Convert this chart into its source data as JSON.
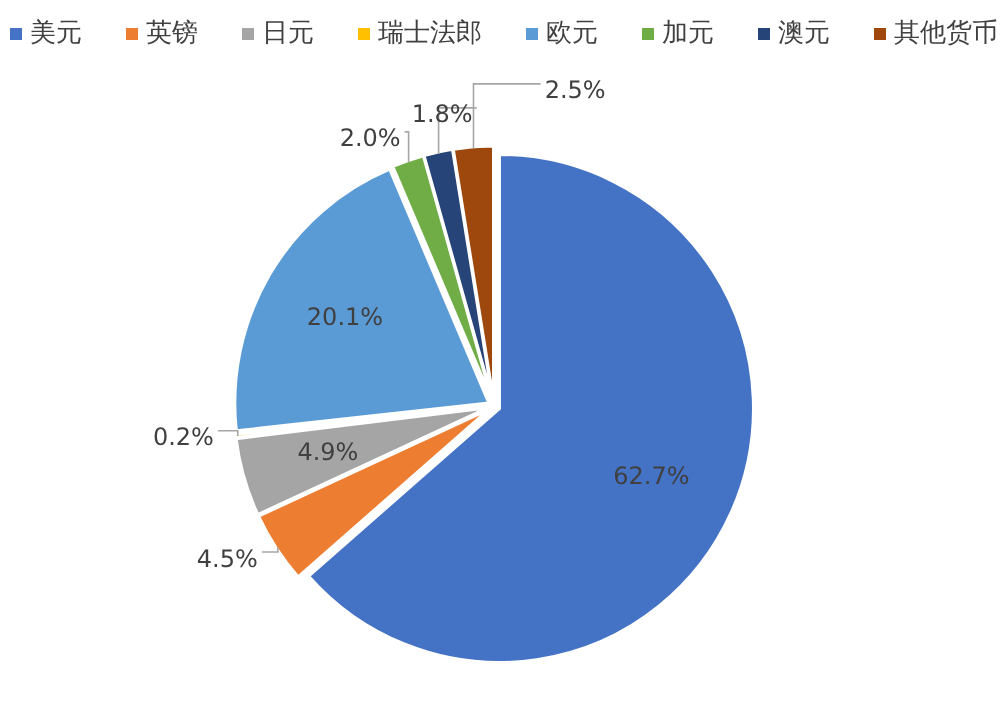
{
  "chart_data": {
    "type": "pie",
    "categories": [
      "美元",
      "英镑",
      "日元",
      "瑞士法郎",
      "欧元",
      "加元",
      "澳元",
      "其他货币"
    ],
    "values": [
      62.7,
      4.5,
      4.9,
      0.2,
      20.1,
      2.0,
      1.8,
      2.5
    ],
    "colors": [
      "#4472c4",
      "#ed7d31",
      "#a5a5a5",
      "#ffc000",
      "#5b9bd5",
      "#70ad47",
      "#264478",
      "#9e480e"
    ],
    "value_labels": [
      "62.7%",
      "4.5%",
      "4.9%",
      "0.2%",
      "20.1%",
      "2.0%",
      "1.8%",
      "2.5%"
    ],
    "legend": "top"
  }
}
